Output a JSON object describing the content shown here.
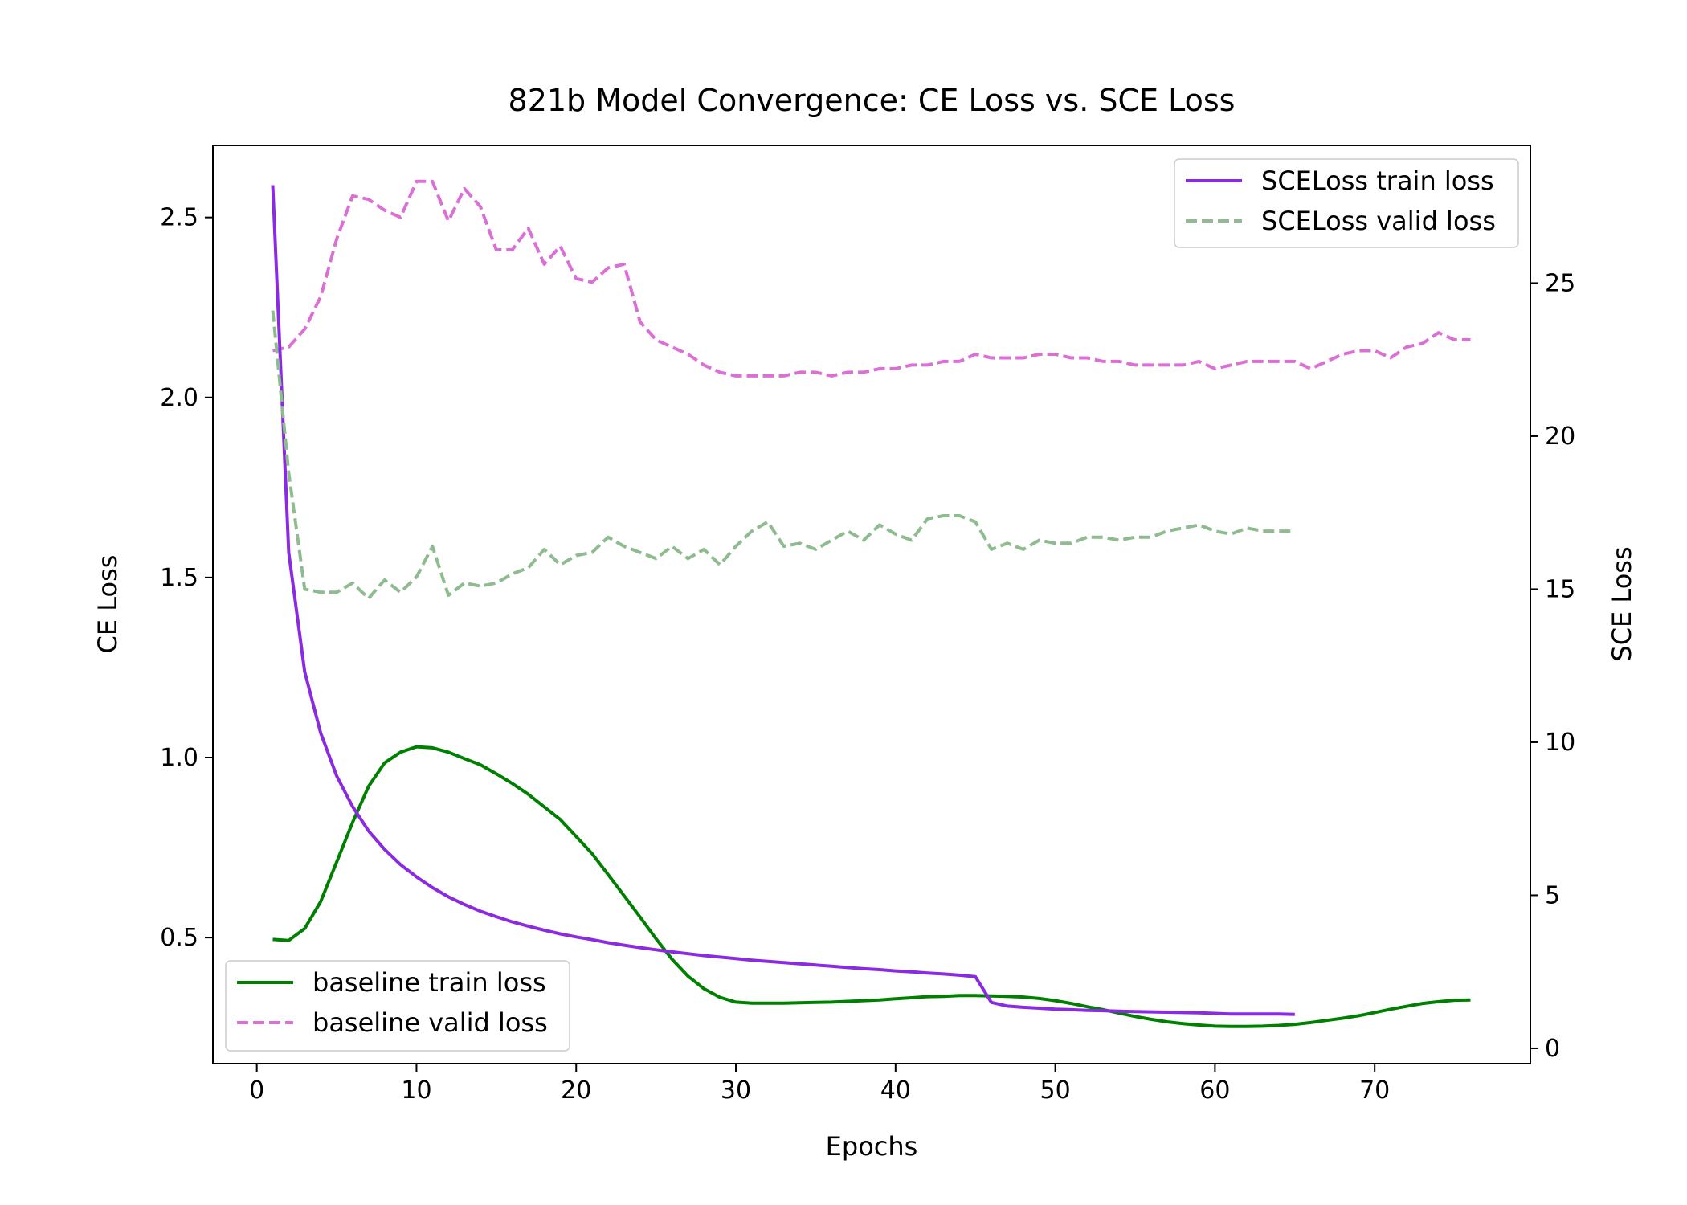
{
  "chart_data": {
    "type": "line",
    "title": "821b Model Convergence: CE Loss vs. SCE Loss",
    "xlabel": "Epochs",
    "ylabel_left": "CE Loss",
    "ylabel_right": "SCE Loss",
    "xlim": [
      -2.75,
      79.75
    ],
    "ylim_left": [
      0.15,
      2.7
    ],
    "ylim_right": [
      -0.5,
      29.5
    ],
    "xticks": [
      0,
      10,
      20,
      30,
      40,
      50,
      60,
      70
    ],
    "yticks_left": [
      0.5,
      1.0,
      1.5,
      2.0,
      2.5
    ],
    "yticks_right": [
      0,
      5,
      10,
      15,
      20,
      25
    ],
    "grid": false,
    "legends": [
      {
        "placement": "lower-left",
        "entries": [
          "baseline train loss",
          "baseline valid loss"
        ]
      },
      {
        "placement": "upper-right",
        "entries": [
          "SCELoss train loss",
          "SCELoss valid loss"
        ]
      }
    ],
    "series": [
      {
        "name": "baseline train loss",
        "axis": "left",
        "style": "solid",
        "color": "#008000",
        "x": [
          1,
          2,
          3,
          4,
          5,
          6,
          7,
          8,
          9,
          10,
          11,
          12,
          13,
          14,
          15,
          16,
          17,
          18,
          19,
          20,
          21,
          22,
          23,
          24,
          25,
          26,
          27,
          28,
          29,
          30,
          31,
          32,
          33,
          34,
          35,
          36,
          37,
          38,
          39,
          40,
          41,
          42,
          43,
          44,
          45,
          46,
          47,
          48,
          49,
          50,
          51,
          52,
          53,
          54,
          55,
          56,
          57,
          58,
          59,
          60,
          61,
          62,
          63,
          64,
          65,
          66,
          67,
          68,
          69,
          70,
          71,
          72,
          73,
          74,
          75,
          76
        ],
        "y": [
          0.495,
          0.492,
          0.525,
          0.6,
          0.71,
          0.82,
          0.92,
          0.985,
          1.015,
          1.03,
          1.027,
          1.015,
          0.997,
          0.98,
          0.955,
          0.928,
          0.898,
          0.863,
          0.828,
          0.781,
          0.733,
          0.675,
          0.616,
          0.557,
          0.497,
          0.44,
          0.393,
          0.358,
          0.334,
          0.321,
          0.318,
          0.318,
          0.318,
          0.319,
          0.32,
          0.321,
          0.323,
          0.325,
          0.327,
          0.33,
          0.333,
          0.336,
          0.337,
          0.339,
          0.339,
          0.338,
          0.337,
          0.335,
          0.331,
          0.325,
          0.317,
          0.308,
          0.3,
          0.29,
          0.281,
          0.273,
          0.266,
          0.261,
          0.257,
          0.254,
          0.253,
          0.253,
          0.254,
          0.256,
          0.259,
          0.264,
          0.27,
          0.276,
          0.283,
          0.292,
          0.301,
          0.309,
          0.317,
          0.322,
          0.326,
          0.327
        ]
      },
      {
        "name": "baseline valid loss",
        "axis": "left",
        "style": "dashed",
        "color": "#da70d6",
        "x": [
          1,
          2,
          3,
          4,
          5,
          6,
          7,
          8,
          9,
          10,
          11,
          12,
          13,
          14,
          15,
          16,
          17,
          18,
          19,
          20,
          21,
          22,
          23,
          24,
          25,
          26,
          27,
          28,
          29,
          30,
          31,
          32,
          33,
          34,
          35,
          36,
          37,
          38,
          39,
          40,
          41,
          42,
          43,
          44,
          45,
          46,
          47,
          48,
          49,
          50,
          51,
          52,
          53,
          54,
          55,
          56,
          57,
          58,
          59,
          60,
          61,
          62,
          63,
          64,
          65,
          66,
          67,
          68,
          69,
          70,
          71,
          72,
          73,
          74,
          75,
          76
        ],
        "y": [
          2.13,
          2.14,
          2.19,
          2.28,
          2.44,
          2.56,
          2.55,
          2.52,
          2.5,
          2.6,
          2.6,
          2.49,
          2.58,
          2.53,
          2.41,
          2.41,
          2.47,
          2.37,
          2.42,
          2.33,
          2.32,
          2.36,
          2.37,
          2.21,
          2.16,
          2.14,
          2.12,
          2.09,
          2.07,
          2.06,
          2.06,
          2.06,
          2.06,
          2.07,
          2.07,
          2.06,
          2.07,
          2.07,
          2.08,
          2.08,
          2.09,
          2.09,
          2.1,
          2.1,
          2.12,
          2.11,
          2.11,
          2.11,
          2.12,
          2.12,
          2.11,
          2.11,
          2.1,
          2.1,
          2.09,
          2.09,
          2.09,
          2.09,
          2.1,
          2.08,
          2.09,
          2.1,
          2.1,
          2.1,
          2.1,
          2.08,
          2.1,
          2.12,
          2.13,
          2.13,
          2.11,
          2.14,
          2.15,
          2.18,
          2.16,
          2.16
        ]
      },
      {
        "name": "SCELoss train loss",
        "axis": "right",
        "style": "solid",
        "color": "#8a2be2",
        "x": [
          1,
          2,
          3,
          4,
          5,
          6,
          7,
          8,
          9,
          10,
          11,
          12,
          13,
          14,
          15,
          16,
          17,
          18,
          19,
          20,
          21,
          22,
          23,
          24,
          25,
          26,
          27,
          28,
          29,
          30,
          31,
          32,
          33,
          34,
          35,
          36,
          37,
          38,
          39,
          40,
          41,
          42,
          43,
          44,
          45,
          46,
          47,
          48,
          49,
          50,
          51,
          52,
          53,
          54,
          55,
          56,
          57,
          58,
          59,
          60,
          61,
          62,
          63,
          64,
          65
        ],
        "y": [
          28.2,
          16.2,
          12.3,
          10.3,
          8.9,
          7.9,
          7.1,
          6.5,
          6.0,
          5.6,
          5.25,
          4.95,
          4.7,
          4.48,
          4.3,
          4.13,
          3.99,
          3.86,
          3.74,
          3.64,
          3.55,
          3.45,
          3.37,
          3.29,
          3.22,
          3.15,
          3.09,
          3.03,
          2.98,
          2.93,
          2.88,
          2.84,
          2.8,
          2.76,
          2.72,
          2.68,
          2.64,
          2.6,
          2.57,
          2.53,
          2.5,
          2.46,
          2.43,
          2.39,
          2.34,
          1.5,
          1.38,
          1.34,
          1.31,
          1.28,
          1.26,
          1.24,
          1.23,
          1.21,
          1.2,
          1.19,
          1.18,
          1.17,
          1.16,
          1.14,
          1.12,
          1.12,
          1.12,
          1.12,
          1.11
        ]
      },
      {
        "name": "SCELoss valid loss",
        "axis": "right",
        "style": "dashed",
        "color": "#8fbc8f",
        "x": [
          1,
          2,
          3,
          4,
          5,
          6,
          7,
          8,
          9,
          10,
          11,
          12,
          13,
          14,
          15,
          16,
          17,
          18,
          19,
          20,
          21,
          22,
          23,
          24,
          25,
          26,
          27,
          28,
          29,
          30,
          31,
          32,
          33,
          34,
          35,
          36,
          37,
          38,
          39,
          40,
          41,
          42,
          43,
          44,
          45,
          46,
          47,
          48,
          49,
          50,
          51,
          52,
          53,
          54,
          55,
          56,
          57,
          58,
          59,
          60,
          61,
          62,
          63,
          64,
          65
        ],
        "y": [
          24.1,
          18.8,
          15.0,
          14.9,
          14.9,
          15.2,
          14.7,
          15.3,
          14.9,
          15.4,
          16.4,
          14.8,
          15.2,
          15.1,
          15.2,
          15.5,
          15.7,
          16.3,
          15.8,
          16.1,
          16.2,
          16.7,
          16.4,
          16.2,
          16.0,
          16.4,
          16.0,
          16.3,
          15.8,
          16.4,
          16.9,
          17.2,
          16.4,
          16.5,
          16.3,
          16.6,
          16.9,
          16.6,
          17.1,
          16.8,
          16.6,
          17.3,
          17.4,
          17.4,
          17.2,
          16.3,
          16.5,
          16.3,
          16.6,
          16.5,
          16.5,
          16.7,
          16.7,
          16.6,
          16.7,
          16.7,
          16.9,
          17.0,
          17.1,
          16.9,
          16.8,
          17.0,
          16.9,
          16.9,
          16.9
        ]
      }
    ]
  }
}
